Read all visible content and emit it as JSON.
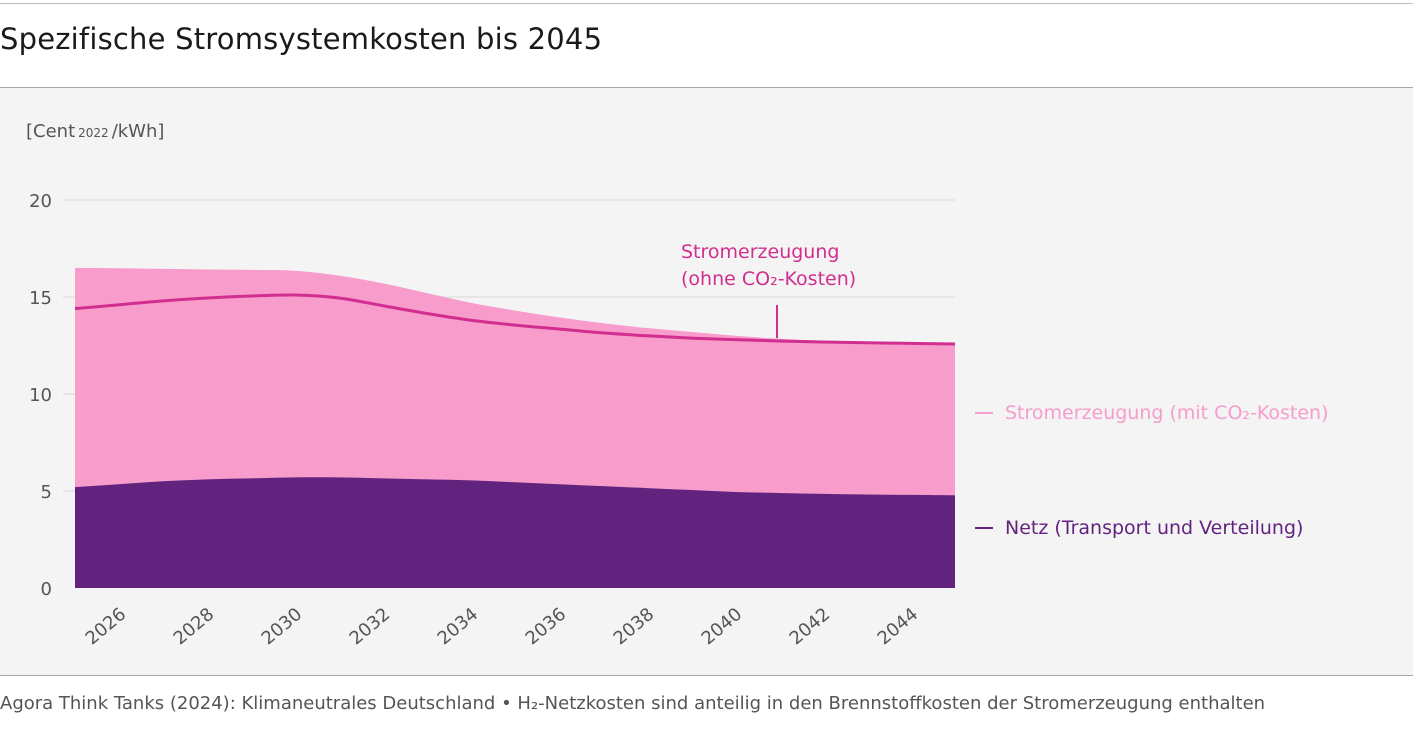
{
  "title": "Spezifische Stromsystemkosten bis 2045",
  "source": "Agora Think Tanks (2024): Klimaneutrales Deutschland • H₂-Netzkosten sind anteilig in den Brennstoffkosten der Stromerzeugung enthalten",
  "colors": {
    "netz": "#62237f",
    "mit_co2": "#f79ccb",
    "ohne_co2_line": "#d12e8f",
    "grid": "#e6e6e6",
    "panel": "#f4f4f4"
  },
  "chart_data": {
    "type": "area",
    "ylabel": {
      "prefix": "[Cent",
      "sub": "2022",
      "suffix": "/kWh]"
    },
    "ylim": [
      0,
      20
    ],
    "yticks": [
      "0",
      "5",
      "10",
      "15",
      "20"
    ],
    "grid": true,
    "x": [
      2025,
      2026,
      2027,
      2028,
      2029,
      2030,
      2031,
      2032,
      2033,
      2034,
      2035,
      2036,
      2037,
      2038,
      2039,
      2040,
      2041,
      2042,
      2043,
      2044,
      2045
    ],
    "xticks": [
      "2026",
      "2028",
      "2030",
      "2032",
      "2034",
      "2036",
      "2038",
      "2040",
      "2042",
      "2044"
    ],
    "series": [
      {
        "key": "netz",
        "name": "Netz (Transport und Verteilung)",
        "kind": "area",
        "values": [
          5.2,
          5.35,
          5.5,
          5.6,
          5.65,
          5.7,
          5.7,
          5.65,
          5.6,
          5.55,
          5.45,
          5.35,
          5.25,
          5.15,
          5.05,
          4.95,
          4.9,
          4.85,
          4.82,
          4.8,
          4.78
        ]
      },
      {
        "key": "mit_co2",
        "name": "Stromerzeugung (mit CO₂-Kosten)",
        "kind": "area",
        "values": [
          16.5,
          16.48,
          16.45,
          16.42,
          16.4,
          16.35,
          16.1,
          15.7,
          15.2,
          14.7,
          14.3,
          13.95,
          13.65,
          13.4,
          13.2,
          13.0,
          12.85,
          12.75,
          12.68,
          12.62,
          12.58
        ]
      },
      {
        "key": "ohne_co2",
        "name": "Stromerzeugung (ohne CO₂-Kosten)",
        "kind": "line",
        "values": [
          14.4,
          14.6,
          14.8,
          14.95,
          15.05,
          15.1,
          14.95,
          14.55,
          14.15,
          13.8,
          13.55,
          13.35,
          13.15,
          13.0,
          12.88,
          12.8,
          12.73,
          12.68,
          12.64,
          12.61,
          12.58
        ]
      }
    ],
    "annotation": {
      "line1": "Stromerzeugung",
      "line2": "(ohne CO₂-Kosten)",
      "at_x": 2041
    },
    "legend": [
      {
        "label": "Stromerzeugung (mit CO₂-Kosten)",
        "color_key": "mit_co2"
      },
      {
        "label": "Netz (Transport und Verteilung)",
        "color_key": "netz"
      }
    ]
  }
}
